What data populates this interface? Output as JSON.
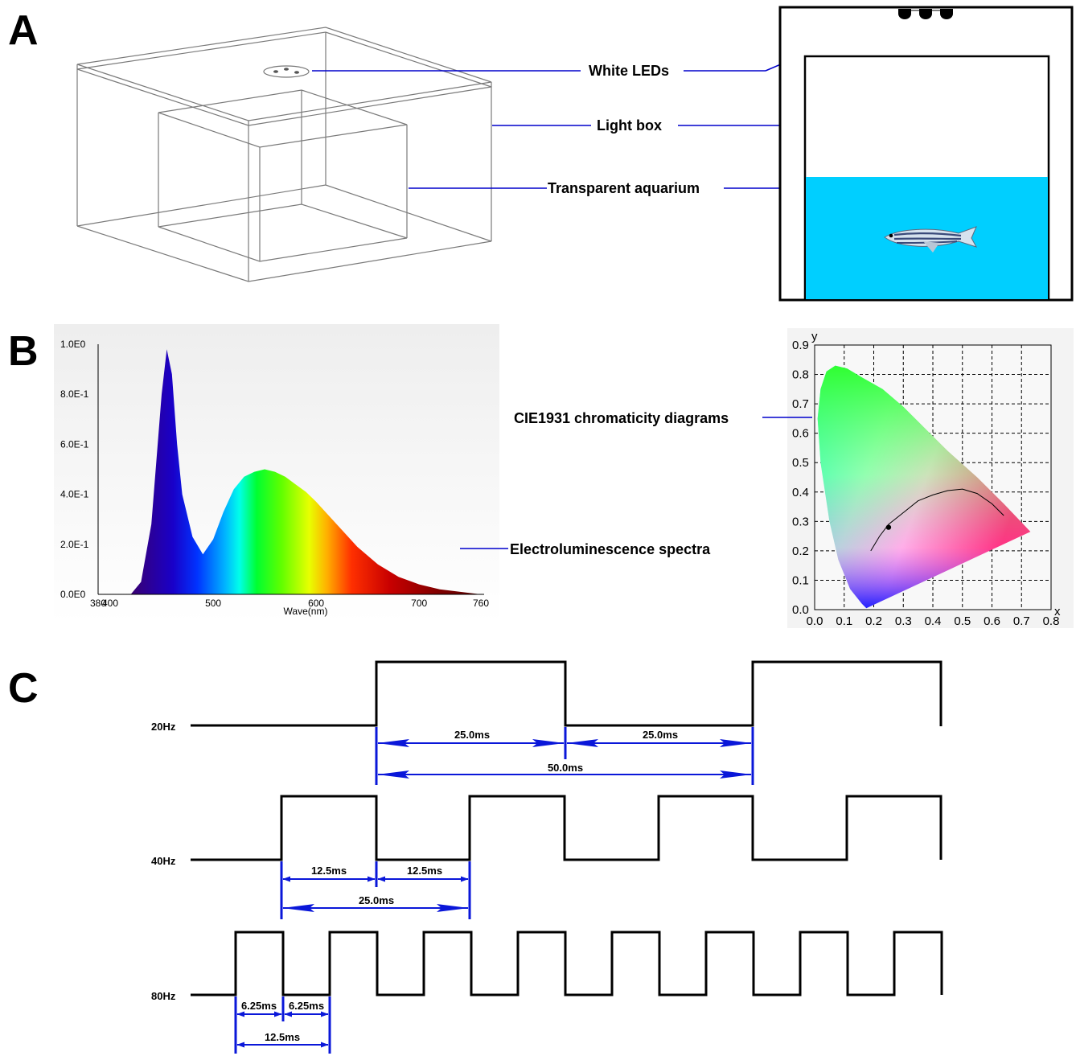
{
  "panels": {
    "a": {
      "letter": "A",
      "callouts": {
        "leds": "White LEDs",
        "light_box": "Light box",
        "aquarium": "Transparent aquarium"
      }
    },
    "b": {
      "letter": "B",
      "callouts": {
        "cie": "CIE1931 chromaticity diagrams",
        "spectra": "Electroluminescence spectra"
      }
    },
    "c": {
      "letter": "C"
    }
  },
  "chart_data": [
    {
      "type": "area",
      "title": "",
      "xlabel": "Wave(nm)",
      "ylabel": "",
      "x_ticks": [
        "380",
        "400",
        "500",
        "600",
        "700",
        "760"
      ],
      "y_ticks": [
        "0.0E0",
        "2.0E-1",
        "4.0E-1",
        "6.0E-1",
        "8.0E-1",
        "1.0E0"
      ],
      "xlim": [
        380,
        760
      ],
      "ylim": [
        0,
        1.0
      ],
      "grid": false,
      "x": [
        420,
        430,
        440,
        450,
        455,
        460,
        465,
        470,
        480,
        490,
        500,
        510,
        520,
        530,
        540,
        550,
        560,
        570,
        580,
        590,
        600,
        620,
        640,
        660,
        680,
        700,
        720,
        740,
        760
      ],
      "values": [
        0.0,
        0.05,
        0.28,
        0.8,
        0.98,
        0.88,
        0.6,
        0.4,
        0.23,
        0.16,
        0.22,
        0.33,
        0.42,
        0.47,
        0.49,
        0.5,
        0.49,
        0.47,
        0.44,
        0.41,
        0.37,
        0.28,
        0.19,
        0.12,
        0.07,
        0.04,
        0.02,
        0.01,
        0.0
      ]
    },
    {
      "type": "scatter",
      "title": "",
      "xlabel": "x",
      "ylabel": "y",
      "x_ticks": [
        "0.0",
        "0.1",
        "0.2",
        "0.3",
        "0.4",
        "0.5",
        "0.6",
        "0.7",
        "0.8"
      ],
      "y_ticks": [
        "0.0",
        "0.1",
        "0.2",
        "0.3",
        "0.4",
        "0.5",
        "0.6",
        "0.7",
        "0.8",
        "0.9"
      ],
      "xlim": [
        0,
        0.8
      ],
      "ylim": [
        0,
        0.9
      ],
      "grid": true,
      "point": {
        "x": 0.25,
        "y": 0.28
      },
      "planckian_locus": [
        [
          0.19,
          0.2
        ],
        [
          0.22,
          0.25
        ],
        [
          0.25,
          0.29
        ],
        [
          0.3,
          0.33
        ],
        [
          0.35,
          0.37
        ],
        [
          0.4,
          0.39
        ],
        [
          0.45,
          0.405
        ],
        [
          0.5,
          0.41
        ],
        [
          0.55,
          0.395
        ],
        [
          0.6,
          0.36
        ],
        [
          0.64,
          0.32
        ]
      ],
      "gamut": [
        [
          0.175,
          0.005
        ],
        [
          0.16,
          0.02
        ],
        [
          0.12,
          0.07
        ],
        [
          0.08,
          0.17
        ],
        [
          0.05,
          0.3
        ],
        [
          0.02,
          0.5
        ],
        [
          0.01,
          0.65
        ],
        [
          0.02,
          0.75
        ],
        [
          0.04,
          0.81
        ],
        [
          0.07,
          0.83
        ],
        [
          0.11,
          0.82
        ],
        [
          0.16,
          0.79
        ],
        [
          0.23,
          0.75
        ],
        [
          0.3,
          0.69
        ],
        [
          0.37,
          0.62
        ],
        [
          0.45,
          0.54
        ],
        [
          0.55,
          0.45
        ],
        [
          0.64,
          0.36
        ],
        [
          0.73,
          0.265
        ]
      ]
    }
  ],
  "signals": [
    {
      "label": "20Hz",
      "dims": [
        {
          "text": "25.0ms"
        },
        {
          "text": "25.0ms"
        },
        {
          "text": "50.0ms"
        }
      ]
    },
    {
      "label": "40Hz",
      "dims": [
        {
          "text": "12.5ms"
        },
        {
          "text": "12.5ms"
        },
        {
          "text": "25.0ms"
        }
      ]
    },
    {
      "label": "80Hz",
      "dims": [
        {
          "text": "6.25ms"
        },
        {
          "text": "6.25ms"
        },
        {
          "text": "12.5ms"
        }
      ]
    }
  ],
  "colors": {
    "leader": "#0000cc",
    "dimension": "#0a17d9",
    "water": "#00cfff",
    "signal": "#000000"
  }
}
